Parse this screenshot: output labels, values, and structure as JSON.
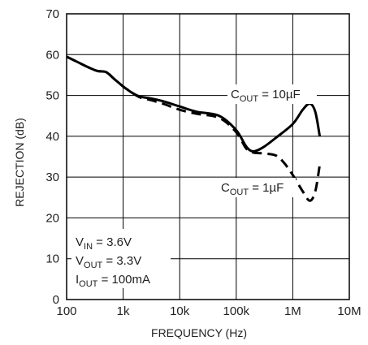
{
  "chart_data": {
    "type": "line",
    "xlabel": "FREQUENCY (Hz)",
    "ylabel": "REJECTION (dB)",
    "x_scale": "log",
    "xlim": [
      100,
      10000000
    ],
    "ylim": [
      0,
      70
    ],
    "grid": true,
    "x_tick_values": [
      100,
      1000,
      10000,
      100000,
      1000000,
      10000000
    ],
    "x_tick_labels": [
      "100",
      "1k",
      "10k",
      "100k",
      "1M",
      "10M"
    ],
    "y_tick_values": [
      0,
      10,
      20,
      30,
      40,
      50,
      60,
      70
    ],
    "y_tick_labels": [
      "0",
      "10",
      "20",
      "30",
      "40",
      "50",
      "60",
      "70"
    ],
    "series": [
      {
        "label_main": "C",
        "label_sub": "OUT",
        "label_rest": " = 10µF",
        "style": "solid",
        "x": [
          100,
          150,
          250,
          350,
          500,
          700,
          1000,
          1500,
          2000,
          3000,
          5000,
          10000,
          20000,
          50000,
          100000,
          150000,
          200000,
          300000,
          500000,
          1000000,
          1500000,
          2000000,
          2500000,
          3000000
        ],
        "y": [
          59.5,
          58.3,
          56.8,
          56.0,
          55.7,
          54.0,
          52.2,
          50.5,
          49.7,
          49.3,
          48.6,
          47.3,
          46.0,
          45.0,
          41.5,
          37.5,
          36.3,
          37.3,
          39.6,
          43.0,
          46.5,
          48.0,
          46.0,
          40.0
        ]
      },
      {
        "label_main": "C",
        "label_sub": "OUT",
        "label_rest": " = 1µF",
        "style": "dashed",
        "x": [
          100,
          150,
          250,
          350,
          500,
          700,
          1000,
          1500,
          2000,
          3000,
          5000,
          10000,
          20000,
          50000,
          100000,
          150000,
          200000,
          300000,
          500000,
          700000,
          1000000,
          1500000,
          2000000,
          2500000,
          3000000
        ],
        "y": [
          59.5,
          58.3,
          56.8,
          56.0,
          55.7,
          54.0,
          52.2,
          50.5,
          49.5,
          48.9,
          48.0,
          46.5,
          45.5,
          44.5,
          41.0,
          37.0,
          36.0,
          35.8,
          35.3,
          33.5,
          30.5,
          26.5,
          24.2,
          26.5,
          33.0
        ]
      }
    ],
    "conditions": [
      {
        "main": "V",
        "sub": "IN",
        "rest": " = 3.6V"
      },
      {
        "main": "V",
        "sub": "OUT",
        "rest": " = 3.3V"
      },
      {
        "main": "I",
        "sub": "OUT",
        "rest": " = 100mA"
      }
    ]
  }
}
